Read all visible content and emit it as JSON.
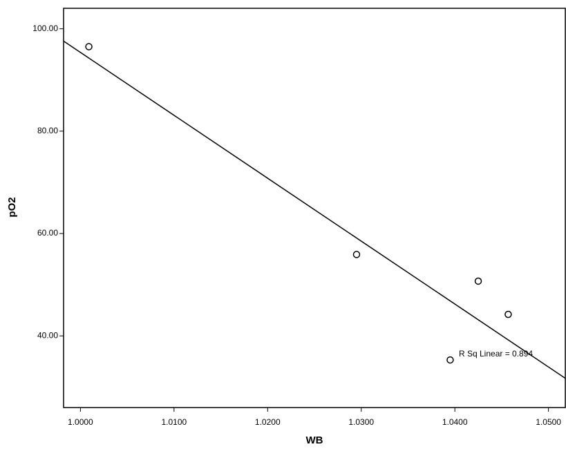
{
  "chart_data": {
    "type": "scatter",
    "x_label": "WB",
    "y_label": "pO2",
    "annotation": "R Sq Linear = 0.894",
    "x": [
      1.0009,
      1.0295,
      1.0395,
      1.0425,
      1.0457
    ],
    "values": [
      96.5,
      55.9,
      35.3,
      50.7,
      44.2
    ],
    "color": "#000000",
    "fit_line": true,
    "xlim": [
      0.9982,
      1.0518
    ],
    "ylim": [
      26,
      104
    ],
    "xticks": [
      {
        "value": 1.0,
        "label": "1.0000"
      },
      {
        "value": 1.01,
        "label": "1.0100"
      },
      {
        "value": 1.02,
        "label": "1.0200"
      },
      {
        "value": 1.03,
        "label": "1.0300"
      },
      {
        "value": 1.04,
        "label": "1.0400"
      },
      {
        "value": 1.05,
        "label": "1.0500"
      }
    ],
    "yticks": [
      {
        "value": 40,
        "label": "40.00"
      },
      {
        "value": 60,
        "label": "60.00"
      },
      {
        "value": 80,
        "label": "80.00"
      },
      {
        "value": 100,
        "label": "100.00"
      }
    ]
  }
}
